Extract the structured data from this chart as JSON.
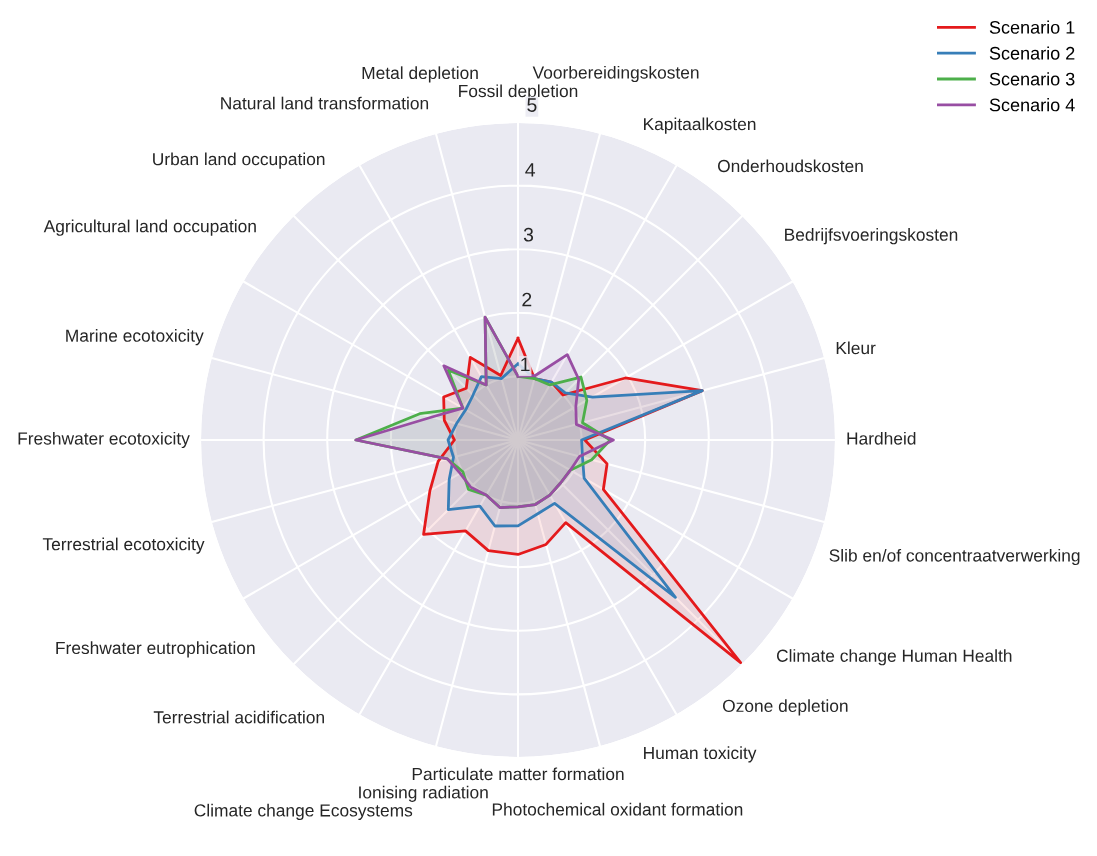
{
  "chart_data": {
    "type": "radar",
    "categories": [
      "Fossil depletion",
      "Voorbereidingskosten",
      "Kapitaalkosten",
      "Onderhoudskosten",
      "Bedrijfsvoeringskosten",
      "Kleur",
      "Hardheid",
      "Slib en/of concentraatverwerking",
      "Climate change Human Health",
      "Ozone depletion",
      "Human toxicity",
      "Photochemical oxidant formation",
      "Particulate matter formation",
      "Ionising radiation",
      "Climate change Ecosystems",
      "Terrestrial acidification",
      "Freshwater eutrophication",
      "Terrestrial ecotoxicity",
      "Freshwater ecotoxicity",
      "Marine ecotoxicity",
      "Agricultural land occupation",
      "Urban land occupation",
      "Natural land transformation",
      "Metal depletion"
    ],
    "series": [
      {
        "name": "Scenario 1",
        "color": "#e41a1c",
        "values": [
          1.6,
          1.0,
          1.05,
          1.0,
          1.95,
          3.0,
          1.05,
          1.45,
          1.55,
          4.95,
          1.5,
          1.7,
          1.8,
          1.8,
          1.65,
          2.1,
          1.6,
          1.3,
          1.0,
          1.2,
          1.35,
          1.15,
          1.5,
          1.05
        ]
      },
      {
        "name": "Scenario 2",
        "color": "#377eb8",
        "values": [
          1.2,
          1.0,
          1.05,
          1.05,
          1.35,
          3.0,
          1.0,
          1.05,
          1.2,
          3.5,
          1.15,
          1.2,
          1.35,
          1.4,
          1.2,
          1.55,
          1.25,
          1.05,
          1.1,
          1.0,
          0.95,
          1.0,
          1.15,
          1.0
        ]
      },
      {
        "name": "Scenario 3",
        "color": "#4daf4a",
        "values": [
          1.0,
          1.0,
          1.0,
          1.4,
          1.25,
          1.05,
          1.45,
          1.2,
          0.95,
          0.95,
          1.0,
          1.05,
          1.05,
          1.1,
          1.0,
          1.1,
          1.0,
          1.15,
          2.55,
          1.6,
          1.0,
          1.55,
          1.0,
          2.0
        ]
      },
      {
        "name": "Scenario 4",
        "color": "#984ea3",
        "values": [
          1.0,
          1.05,
          1.55,
          1.35,
          1.05,
          0.95,
          1.5,
          1.0,
          0.95,
          0.95,
          1.0,
          1.05,
          1.05,
          1.1,
          1.0,
          1.05,
          1.05,
          1.15,
          2.55,
          1.4,
          1.0,
          1.65,
          1.0,
          2.0
        ]
      }
    ],
    "ylim": [
      0,
      5
    ],
    "yticks": [
      1,
      2,
      3,
      4,
      5
    ],
    "grid": true,
    "legend": "top right"
  }
}
